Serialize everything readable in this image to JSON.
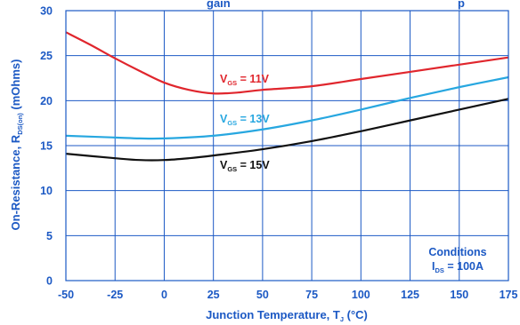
{
  "chart_data": {
    "type": "line",
    "title_partial": "gain",
    "title_partial_2": "p",
    "xlabel_main": "Junction Temperature, T",
    "xlabel_sub": "J",
    "xlabel_unit": " (°C)",
    "ylabel_main": "On-Resistance, R",
    "ylabel_sub": "DS(on)",
    "ylabel_unit": " (mOhms)",
    "xlim": [
      -50,
      175
    ],
    "ylim": [
      0,
      30
    ],
    "x_ticks": [
      "-50",
      "-25",
      "0",
      "25",
      "50",
      "75",
      "100",
      "125",
      "150",
      "175"
    ],
    "y_ticks": [
      "0",
      "5",
      "10",
      "15",
      "20",
      "25",
      "30"
    ],
    "grid": true,
    "colors": {
      "axis": "#1c59c4",
      "grid": "#1c59c4",
      "text": "#1c59c4"
    },
    "series": [
      {
        "label_main": "V",
        "label_sub": "GS",
        "label_val": " = 11V",
        "color": "#e0262d",
        "points": [
          [
            -50,
            27.6
          ],
          [
            -37.5,
            26.2
          ],
          [
            -25,
            24.7
          ],
          [
            -12.5,
            23.3
          ],
          [
            0,
            22.0
          ],
          [
            12.5,
            21.2
          ],
          [
            25,
            20.8
          ],
          [
            37.5,
            20.9
          ],
          [
            50,
            21.2
          ],
          [
            75,
            21.6
          ],
          [
            100,
            22.4
          ],
          [
            125,
            23.2
          ],
          [
            150,
            24.0
          ],
          [
            175,
            24.8
          ]
        ]
      },
      {
        "label_main": "V",
        "label_sub": "GS",
        "label_val": " = 13V",
        "color": "#27a7e0",
        "points": [
          [
            -50,
            16.1
          ],
          [
            -25,
            15.9
          ],
          [
            -12.5,
            15.8
          ],
          [
            0,
            15.8
          ],
          [
            25,
            16.1
          ],
          [
            50,
            16.8
          ],
          [
            75,
            17.8
          ],
          [
            100,
            19.0
          ],
          [
            125,
            20.3
          ],
          [
            150,
            21.5
          ],
          [
            175,
            22.6
          ]
        ]
      },
      {
        "label_main": "V",
        "label_sub": "GS",
        "label_val": " = 15V",
        "color": "#111111",
        "points": [
          [
            -50,
            14.1
          ],
          [
            -25,
            13.6
          ],
          [
            -12.5,
            13.4
          ],
          [
            0,
            13.4
          ],
          [
            12.5,
            13.6
          ],
          [
            25,
            13.9
          ],
          [
            50,
            14.6
          ],
          [
            75,
            15.5
          ],
          [
            100,
            16.6
          ],
          [
            125,
            17.8
          ],
          [
            150,
            19.0
          ],
          [
            175,
            20.2
          ]
        ]
      }
    ],
    "annotation": {
      "line1": "Conditions",
      "line2_main": "I",
      "line2_sub": "DS",
      "line2_val": " = 100A"
    }
  }
}
